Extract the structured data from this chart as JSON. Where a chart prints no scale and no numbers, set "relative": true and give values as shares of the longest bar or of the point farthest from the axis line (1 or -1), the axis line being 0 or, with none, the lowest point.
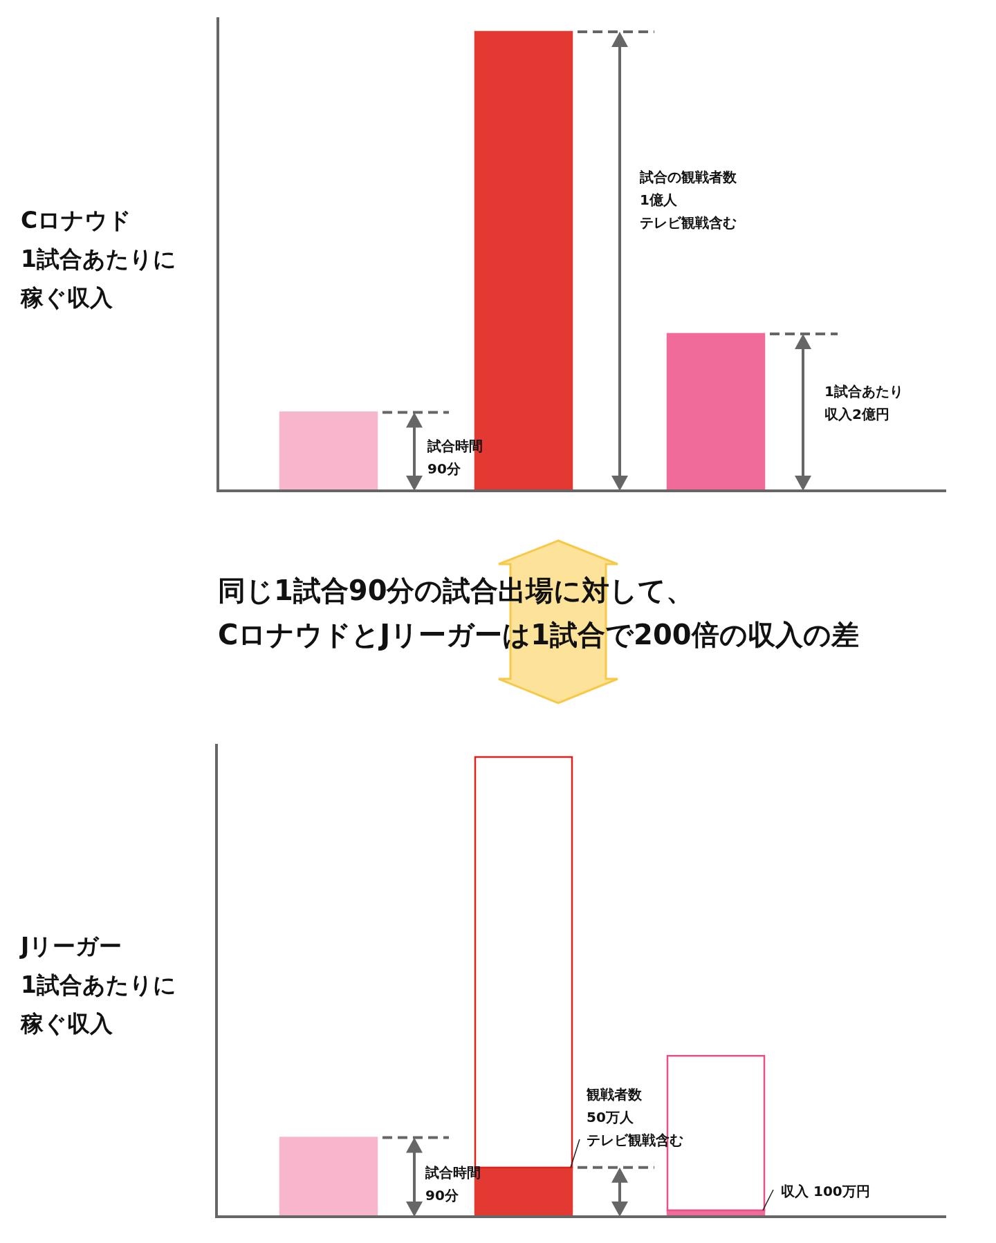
{
  "chart_data": [
    {
      "type": "bar",
      "relative": true,
      "categories": [
        null,
        null,
        null
      ],
      "ylabel": "Cロナウド1試合あたりに稼ぐ収入",
      "series": [
        {
          "values": [
            0.171,
            1,
            0.342
          ],
          "colors": [
            "#f7b6cc",
            "#e23a32",
            "#f06a9a"
          ]
        }
      ],
      "annotations": [
        "試合時間",
        "90分",
        "試合の観戦者数",
        "1億人",
        "テレビ観戦含む",
        "1試合あたり",
        "収入2億円"
      ]
    },
    {
      "type": "bar",
      "relative": true,
      "stacked": true,
      "categories": [
        null,
        null,
        null
      ],
      "ylabel": "Jリーガー1試合あたりに稼ぐ収入",
      "title": "同じ1試合90分の試合出場に対して、\nCロナウドとJリーガーは1試合で200倍の収入の差",
      "series": [
        {
          "values": [
            0.172,
            0.107,
            0.014
          ],
          "colors": [
            "#f7b6cc",
            "#e23a32",
            "#f06a9a"
          ]
        },
        {
          "values": [
            null,
            0.893,
            0.336
          ],
          "colors": [
            null,
            "#e0201f",
            "#e8508a"
          ]
        }
      ],
      "annotations": [
        "試合時間",
        "90分",
        "観戦者数",
        "50万人",
        "テレビ観戦含む",
        "収入 100万円"
      ]
    }
  ]
}
